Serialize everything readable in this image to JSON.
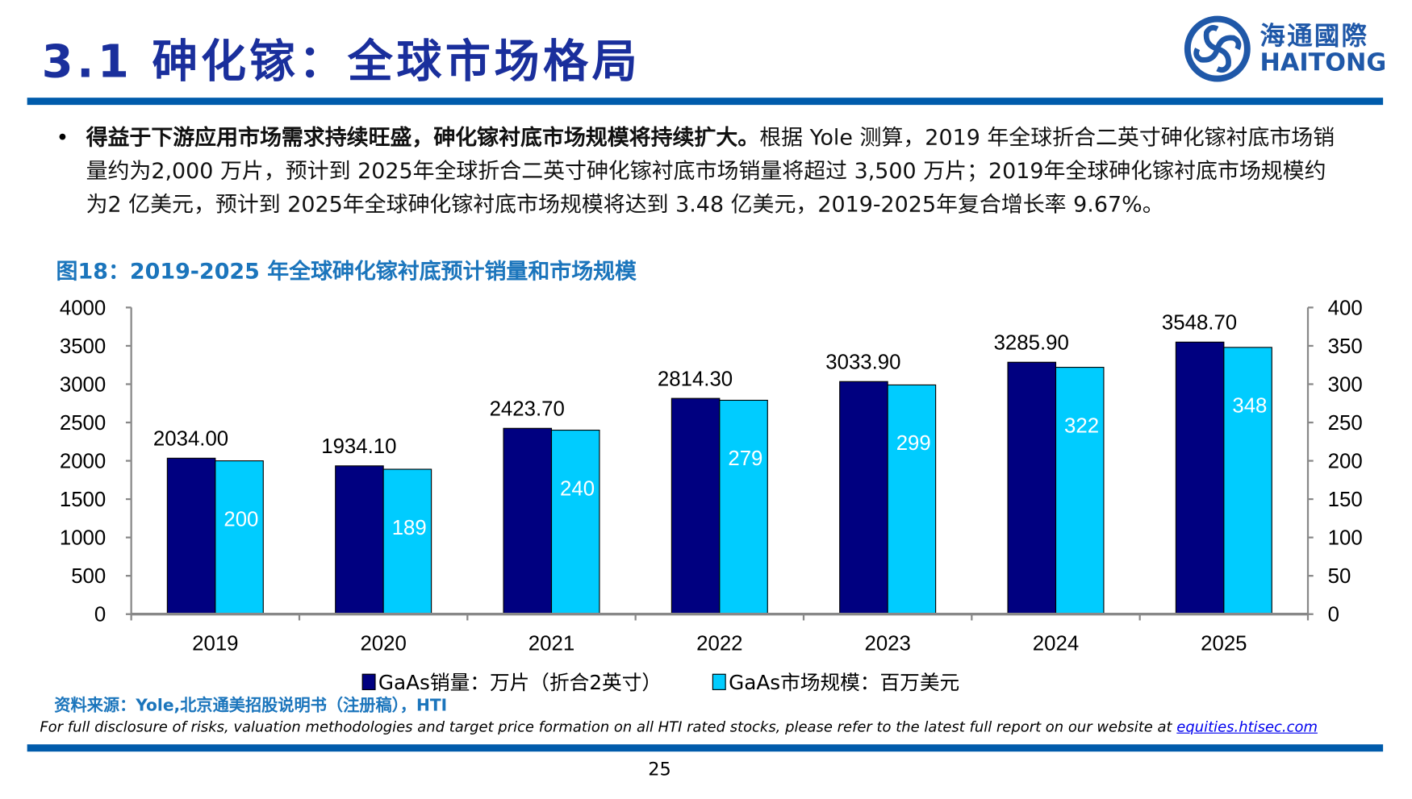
{
  "header": {
    "title": "3.1 砷化镓：全球市场格局",
    "logo_cn": "海通國際",
    "logo_en": "HAITONG",
    "colors": {
      "brand": "#005bab",
      "title": "#1a2f9c"
    }
  },
  "body": {
    "bullet": "•",
    "bold": "得益于下游应用市场需求持续旺盛，砷化镓衬底市场规模将持续扩大。",
    "text": "根据 Yole 测算，2019 年全球折合二英寸砷化镓衬底市场销量约为2,000  万片，预计到  2025年全球折合二英寸砷化镓衬底市场销量将超过 3,500  万片；2019年全球砷化镓衬底市场规模约为2  亿美元，预计到  2025年全球砷化镓衬底市场规模将达到 3.48 亿美元，2019-2025年复合增长率 9.67%。"
  },
  "figure": {
    "title": "图18：2019-2025 年全球砷化镓衬底预计销量和市场规模"
  },
  "chart_data": {
    "type": "bar",
    "categories": [
      "2019",
      "2020",
      "2021",
      "2022",
      "2023",
      "2024",
      "2025"
    ],
    "series": [
      {
        "name": "GaAs销量：万片（折合2英寸）",
        "axis": "left",
        "color": "#000080",
        "values": [
          2034.0,
          1934.1,
          2423.7,
          2814.3,
          3033.9,
          3285.9,
          3548.7
        ],
        "labels": [
          "2034.00",
          "1934.10",
          "2423.70",
          "2814.30",
          "3033.90",
          "3285.90",
          "3548.70"
        ]
      },
      {
        "name": "GaAs市场规模：百万美元",
        "axis": "right",
        "color": "#00ccff",
        "values": [
          200,
          189,
          240,
          279,
          299,
          322,
          348
        ],
        "labels": [
          "200",
          "189",
          "240",
          "279",
          "299",
          "322",
          "348"
        ]
      }
    ],
    "ylim": [
      0,
      4000
    ],
    "y2lim": [
      0,
      400
    ],
    "yticks": [
      "0",
      "500",
      "1000",
      "1500",
      "2000",
      "2500",
      "3000",
      "3500",
      "4000"
    ],
    "y2ticks": [
      "0",
      "50",
      "100",
      "150",
      "200",
      "250",
      "300",
      "350",
      "400"
    ],
    "grid": false,
    "legend": "bottom"
  },
  "footer": {
    "source": "资料来源：Yole,北京通美招股说明书（注册稿），HTI",
    "disclosure": "For full disclosure of risks, valuation methodologies and target price formation on all HTI rated stocks, please refer to the latest full report on our website at ",
    "link": "equities.htisec.com",
    "page": "25"
  }
}
